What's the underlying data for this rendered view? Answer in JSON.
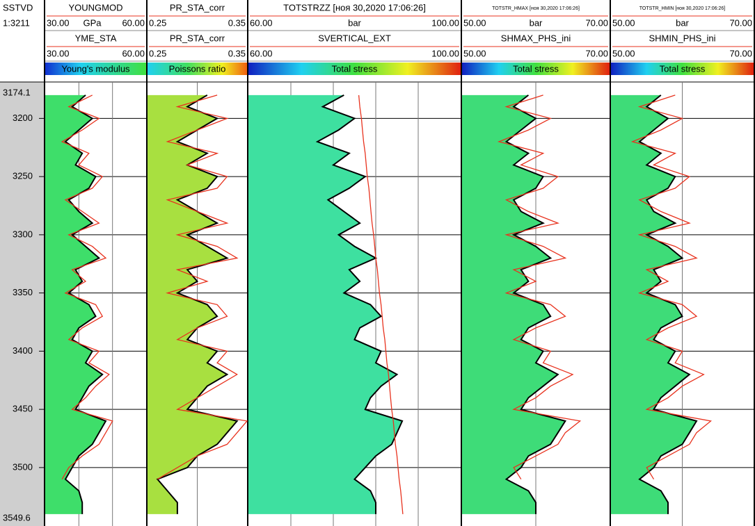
{
  "depth_track": {
    "title": "SSTVD",
    "scale": "1:3211",
    "top": 3174.1,
    "bottom": 3549.6,
    "ticks": [
      3200,
      3250,
      3300,
      3350,
      3400,
      3450,
      3500
    ]
  },
  "depths": [
    3180,
    3190,
    3200,
    3210,
    3220,
    3230,
    3240,
    3250,
    3260,
    3270,
    3280,
    3290,
    3300,
    3310,
    3320,
    3330,
    3340,
    3350,
    3360,
    3370,
    3380,
    3390,
    3400,
    3410,
    3420,
    3430,
    3440,
    3450,
    3460,
    3470,
    3480,
    3490,
    3500,
    3510,
    3520,
    3530,
    3540
  ],
  "tracks": [
    {
      "fill_label": "Young's modulus",
      "curves": [
        {
          "name": "YOUNGMOD",
          "unit": "GPa",
          "min": {
            "value": 30,
            "label": "30.00"
          },
          "max": {
            "value": 60,
            "label": "60.00"
          },
          "color": "#e8321e",
          "values": [
            44,
            37,
            46,
            41,
            35,
            43,
            40,
            47,
            44,
            36,
            41,
            46,
            37,
            44,
            48,
            38,
            42,
            36,
            45,
            47,
            41,
            37,
            46,
            43,
            49,
            45,
            42,
            38,
            50,
            48,
            46,
            41,
            37,
            35,
            null,
            null,
            null
          ]
        },
        {
          "name": "YME_STA",
          "min": {
            "value": 30,
            "label": "30.00"
          },
          "max": {
            "value": 60,
            "label": "60.00"
          },
          "color": "#000000",
          "values": [
            42,
            38,
            44,
            40,
            36,
            41,
            39,
            45,
            43,
            37,
            40,
            44,
            38,
            42,
            46,
            39,
            41,
            37,
            43,
            45,
            40,
            38,
            44,
            42,
            47,
            43,
            41,
            39,
            48,
            46,
            44,
            40,
            38,
            36,
            40,
            41,
            41
          ]
        }
      ]
    },
    {
      "fill_label": "Poissons ratio",
      "curves": [
        {
          "name": "PR_STA_corr",
          "min": {
            "value": 0.25,
            "label": "0.25"
          },
          "max": {
            "value": 0.35,
            "label": "0.35"
          },
          "color": "#e8321e",
          "values": [
            0.32,
            0.28,
            0.33,
            0.3,
            0.27,
            0.32,
            0.29,
            0.33,
            0.32,
            0.27,
            0.3,
            0.33,
            0.28,
            0.32,
            0.34,
            0.28,
            0.31,
            0.27,
            0.32,
            0.33,
            0.3,
            0.28,
            0.33,
            0.32,
            0.34,
            0.32,
            0.3,
            0.28,
            0.35,
            0.34,
            0.33,
            0.3,
            0.28,
            0.26,
            null,
            null,
            null
          ]
        },
        {
          "name": "PR_STA_corr",
          "min": {
            "value": 0.25,
            "label": "0.25"
          },
          "max": {
            "value": 0.35,
            "label": "0.35"
          },
          "color": "#000000",
          "values": [
            0.31,
            0.29,
            0.32,
            0.3,
            0.28,
            0.31,
            0.29,
            0.32,
            0.31,
            0.28,
            0.3,
            0.32,
            0.29,
            0.31,
            0.33,
            0.29,
            0.3,
            0.28,
            0.31,
            0.32,
            0.3,
            0.29,
            0.32,
            0.31,
            0.33,
            0.31,
            0.3,
            0.29,
            0.34,
            0.33,
            0.32,
            0.3,
            0.29,
            0.26,
            0.27,
            0.28,
            0.28
          ]
        }
      ]
    },
    {
      "fill_label": "Total stress",
      "curves": [
        {
          "name": "TOTSTRZZ [ноя 30,2020 17:06:26]",
          "unit": "bar",
          "min": {
            "value": 60,
            "label": "60.00"
          },
          "max": {
            "value": 100,
            "label": "100.00"
          },
          "color": "#000000",
          "values": [
            78,
            74,
            80,
            77,
            73,
            79,
            76,
            82,
            79,
            75,
            78,
            81,
            77,
            80,
            84,
            79,
            81,
            78,
            83,
            85,
            81,
            80,
            85,
            84,
            88,
            85,
            83,
            82,
            89,
            88,
            87,
            84,
            82,
            80,
            83,
            84,
            84
          ]
        },
        {
          "name": "SVERTICAL_EXT",
          "min": {
            "value": 60,
            "label": "60.00"
          },
          "max": {
            "value": 100,
            "label": "100.00"
          },
          "color": "#e8321e",
          "values": [
            80.8,
            81.0,
            81.3,
            81.5,
            81.7,
            82.0,
            82.2,
            82.4,
            82.7,
            82.9,
            83.1,
            83.3,
            83.6,
            83.8,
            84.0,
            84.3,
            84.5,
            84.7,
            85.0,
            85.2,
            85.4,
            85.7,
            85.9,
            86.1,
            86.4,
            86.6,
            86.8,
            87.0,
            87.3,
            87.5,
            87.7,
            88.0,
            88.2,
            88.4,
            88.7,
            88.9,
            89.1
          ]
        }
      ]
    },
    {
      "fill_label": "Total stress",
      "curves": [
        {
          "name": "TOTSTR_HMAX [ноя 30,2020 17:06:26]",
          "unit": "bar",
          "min": {
            "value": 50,
            "label": "50.00"
          },
          "max": {
            "value": 70,
            "label": "70.00"
          },
          "color": "#000000",
          "values": [
            59,
            57,
            60,
            58,
            56,
            59,
            57,
            61,
            60,
            57,
            58,
            61,
            57,
            60,
            62,
            58,
            59,
            57,
            61,
            62,
            59,
            58,
            61,
            60,
            63,
            61,
            59,
            58,
            64,
            63,
            62,
            59,
            58,
            56,
            59,
            60,
            60
          ]
        },
        {
          "name": "SHMAX_PHS_ini",
          "min": {
            "value": 50,
            "label": "50.00"
          },
          "max": {
            "value": 70,
            "label": "70.00"
          },
          "color": "#e8321e",
          "values": [
            61,
            56,
            62,
            59,
            55,
            61,
            58,
            63,
            61,
            56,
            59,
            63,
            56,
            61,
            64,
            57,
            60,
            56,
            62,
            64,
            60,
            57,
            62,
            61,
            65,
            62,
            60,
            57,
            66,
            64,
            63,
            60,
            57,
            58,
            null,
            null,
            null
          ]
        }
      ]
    },
    {
      "fill_label": "Total stress",
      "curves": [
        {
          "name": "TOTSTR_HMIN [ноя 30,2020 17:06:26]",
          "unit": "bar",
          "min": {
            "value": 50,
            "label": "50.00"
          },
          "max": {
            "value": 70,
            "label": "70.00"
          },
          "color": "#000000",
          "values": [
            57,
            55,
            58,
            56,
            54,
            57,
            55,
            59,
            58,
            55,
            56,
            59,
            55,
            58,
            60,
            56,
            57,
            55,
            59,
            60,
            57,
            56,
            59,
            58,
            61,
            59,
            57,
            56,
            62,
            61,
            60,
            57,
            56,
            54,
            57,
            58,
            58
          ]
        },
        {
          "name": "SHMIN_PHS_ini",
          "min": {
            "value": 50,
            "label": "50.00"
          },
          "max": {
            "value": 70,
            "label": "70.00"
          },
          "color": "#e8321e",
          "values": [
            59,
            54,
            60,
            57,
            53,
            59,
            56,
            61,
            59,
            54,
            57,
            61,
            54,
            59,
            62,
            55,
            58,
            54,
            60,
            62,
            58,
            55,
            60,
            59,
            63,
            60,
            58,
            55,
            64,
            62,
            61,
            58,
            55,
            56,
            null,
            null,
            null
          ]
        }
      ]
    }
  ]
}
